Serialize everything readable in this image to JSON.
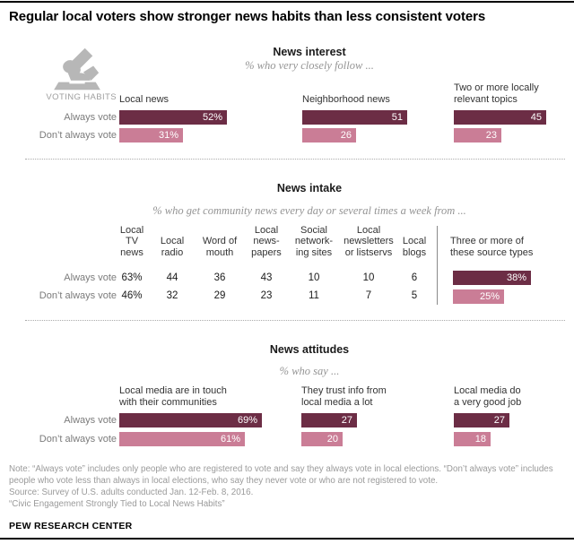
{
  "page": {
    "title": "Regular local voters show stronger news habits than less consistent voters",
    "voting_habits_label": "VOTING HABITS",
    "footer": {
      "note": "Note: “Always vote” includes only people who are registered to vote and say they always vote in local elections. “Don’t always vote” includes people who vote less than always in local elections, who say they never vote or who are not registered to vote.",
      "source": "Source: Survey of U.S. adults conducted Jan. 12-Feb. 8, 2016.",
      "report": "“Civic Engagement Strongly Tied to Local News Habits”",
      "brand": "PEW RESEARCH CENTER"
    }
  },
  "colors": {
    "always_vote": "#6c2d45",
    "dont_always_vote": "#ca7d96"
  },
  "row_labels": {
    "always": "Always vote",
    "dont": "Don’t always vote"
  },
  "chart_data": [
    {
      "type": "bar",
      "panel": "news_interest",
      "title": "News interest",
      "subtitle": "% who very closely follow ...",
      "categories": [
        "Local news",
        "Neighborhood news",
        "Two or more locally relevant topics"
      ],
      "series": [
        {
          "name": "Always vote",
          "values": [
            52,
            51,
            45
          ],
          "labels": [
            "52%",
            "51",
            "45"
          ]
        },
        {
          "name": "Don’t always vote",
          "values": [
            31,
            26,
            23
          ],
          "labels": [
            "31%",
            "26",
            "23"
          ]
        }
      ],
      "unit": "percent",
      "xlim": [
        0,
        100
      ],
      "legend_position": "left-row-labels"
    },
    {
      "type": "table",
      "panel": "news_intake",
      "title": "News intake",
      "subtitle": "% who get community news every day or several times a week from ...",
      "columns": [
        "Local TV news",
        "Local radio",
        "Word of mouth",
        "Local news-papers",
        "Social network-ing sites",
        "Local newsletters or listservs",
        "Local blogs"
      ],
      "rows": [
        {
          "name": "Always vote",
          "values": [
            "63%",
            "44",
            "36",
            "43",
            "10",
            "10",
            "6"
          ]
        },
        {
          "name": "Don’t always vote",
          "values": [
            "46%",
            "32",
            "29",
            "23",
            "11",
            "7",
            "5"
          ]
        }
      ],
      "summary_bar": {
        "label": "Three or more of these source types",
        "series": [
          {
            "name": "Always vote",
            "value": 38,
            "label": "38%"
          },
          {
            "name": "Don’t always vote",
            "value": 25,
            "label": "25%"
          }
        ]
      }
    },
    {
      "type": "bar",
      "panel": "news_attitudes",
      "title": "News attitudes",
      "subtitle": "% who say ...",
      "categories": [
        "Local media are in touch with their communities",
        "They trust info from local media a lot",
        "Local media do a very good job"
      ],
      "series": [
        {
          "name": "Always vote",
          "values": [
            69,
            27,
            27
          ],
          "labels": [
            "69%",
            "27",
            "27"
          ]
        },
        {
          "name": "Don’t always vote",
          "values": [
            61,
            20,
            18
          ],
          "labels": [
            "61%",
            "20",
            "18"
          ]
        }
      ],
      "unit": "percent",
      "xlim": [
        0,
        100
      ],
      "legend_position": "left-row-labels"
    }
  ],
  "display": {
    "interest_labels": [
      [
        "Local news"
      ],
      [
        "Neighborhood news"
      ],
      [
        "Two or more locally",
        "relevant topics"
      ]
    ],
    "intake_columns": [
      [
        "Local",
        "TV",
        "news"
      ],
      [
        "Local",
        "radio"
      ],
      [
        "Word of",
        "mouth"
      ],
      [
        "Local",
        "news-",
        "papers"
      ],
      [
        "Social",
        "network-",
        "ing sites"
      ],
      [
        "Local",
        "newsletters",
        "or listservs"
      ],
      [
        "Local",
        "blogs"
      ]
    ],
    "intake_summary": [
      "Three or more of",
      "these source types"
    ],
    "attitudes_labels": [
      [
        "Local media are in touch",
        "with their communities"
      ],
      [
        "They trust info from",
        "local media a lot"
      ],
      [
        "Local media do",
        "a very good job"
      ]
    ]
  }
}
